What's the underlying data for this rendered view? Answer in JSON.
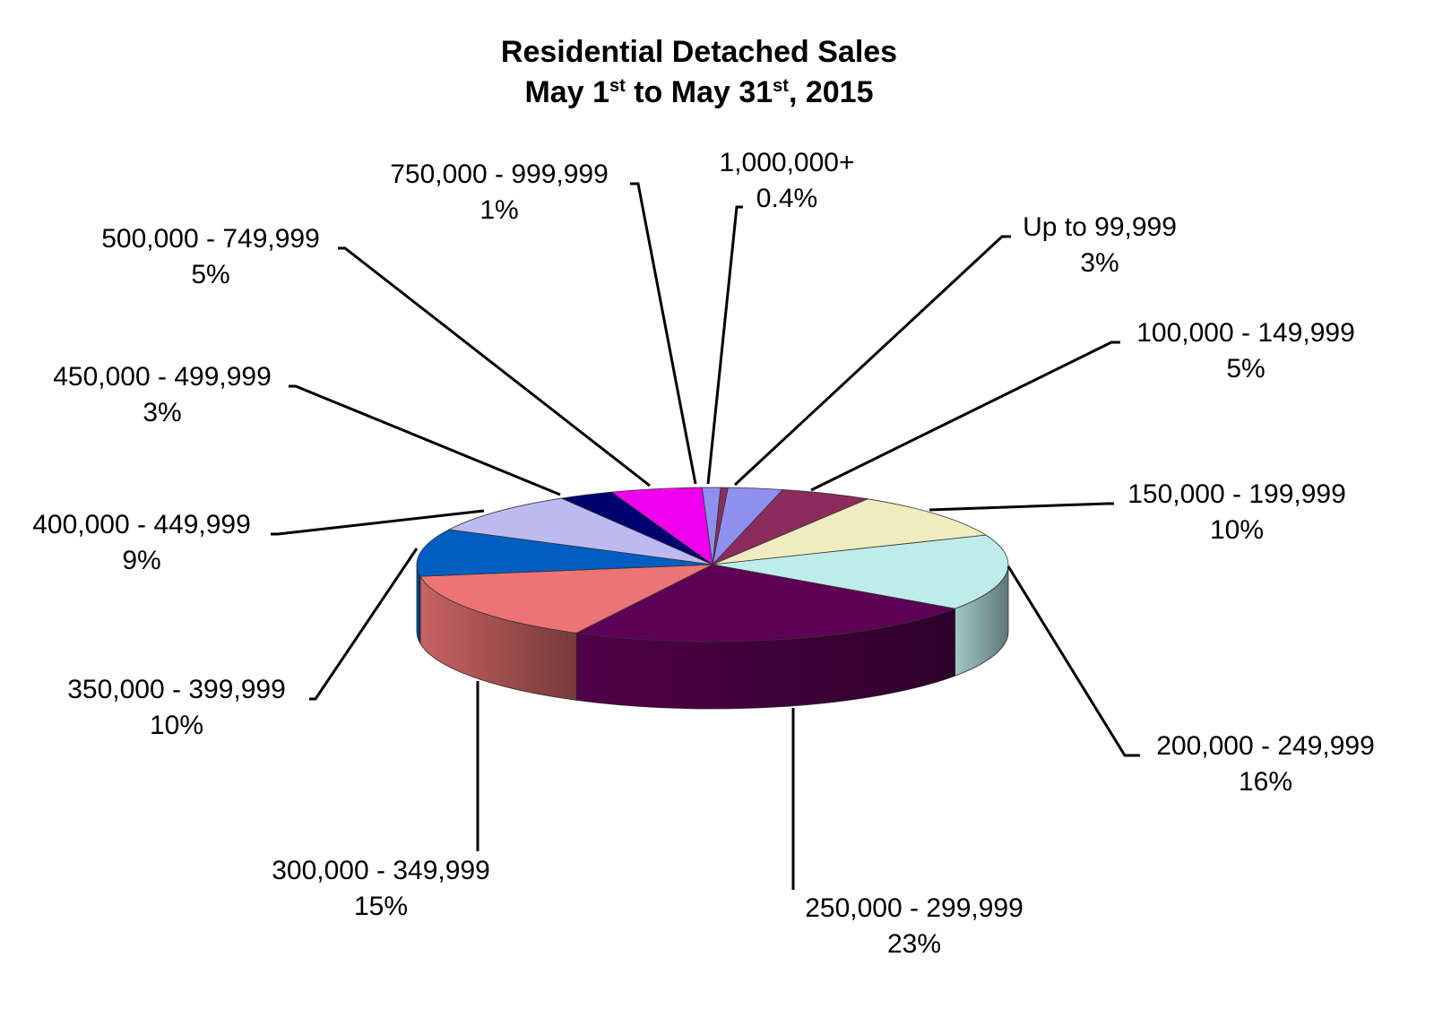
{
  "title": {
    "line1": "Residential Detached Sales",
    "line2_month_a": "May 1",
    "line2_sup_a": "st",
    "line2_mid": " to May 31",
    "line2_sup_b": "st",
    "line2_tail": ", 2015"
  },
  "chart_data": {
    "type": "pie",
    "variant": "3d-exploded-labels",
    "title": "Residential Detached Sales May 1st to May 31st, 2015",
    "categories": [
      "Up to 99,999",
      "100,000 - 149,999",
      "150,000 - 199,999",
      "200,000 - 249,999",
      "250,000 - 299,999",
      "300,000 - 349,999",
      "350,000 - 399,999",
      "400,000 - 449,999",
      "450,000 - 499,999",
      "500,000 - 749,999",
      "750,000 - 999,999",
      "1,000,000+"
    ],
    "values": [
      3,
      5,
      10,
      16,
      23,
      15,
      10,
      9,
      3,
      5,
      1,
      0.4
    ],
    "value_labels": [
      "3%",
      "5%",
      "10%",
      "16%",
      "23%",
      "15%",
      "10%",
      "9%",
      "3%",
      "5%",
      "1%",
      "0.4%"
    ],
    "colors": [
      "#8f8ff0",
      "#8b2c5c",
      "#efecbf",
      "#bdecea",
      "#5e0055",
      "#ec7474",
      "#005ec0",
      "#bcbaf0",
      "#000070",
      "#ee00ee",
      "#8f8ff0",
      "#8b2c5c"
    ],
    "legend": "none",
    "label_position": "outside-with-leader-lines"
  }
}
